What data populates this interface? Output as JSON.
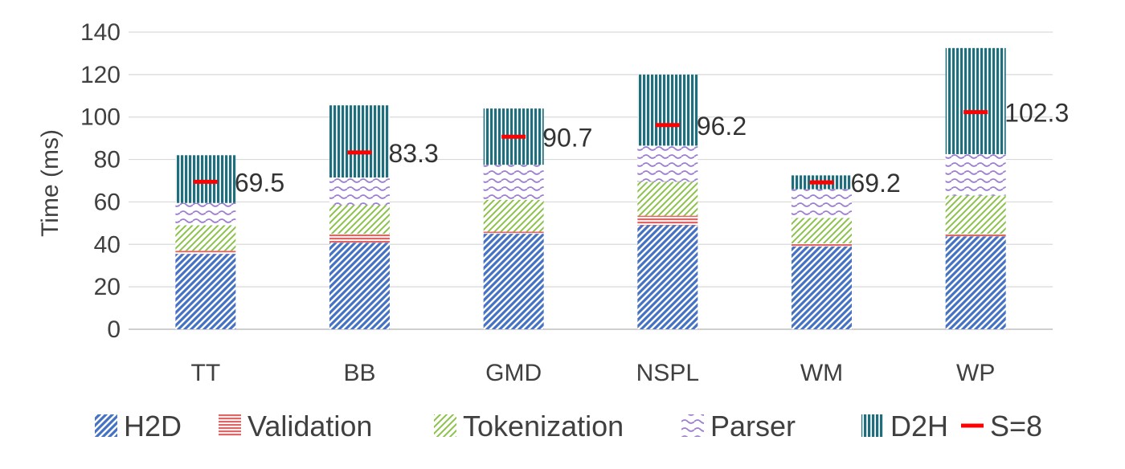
{
  "chart_data": {
    "type": "bar",
    "stacked": true,
    "categories": [
      "TT",
      "BB",
      "GMD",
      "NSPL",
      "WM",
      "WP"
    ],
    "ylabel": "Time (ms)",
    "xlabel": "",
    "ylim": [
      0,
      140
    ],
    "yticks": [
      0,
      20,
      40,
      60,
      80,
      100,
      120,
      140
    ],
    "grid": true,
    "legend": "bottom",
    "series": [
      {
        "name": "H2D",
        "color": "#4472c4",
        "values": [
          35.5,
          40.8,
          45.0,
          49.0,
          39.0,
          43.8
        ]
      },
      {
        "name": "Validation",
        "color": "#e06666",
        "values": [
          1.5,
          4.2,
          1.0,
          4.5,
          1.5,
          1.2
        ]
      },
      {
        "name": "Tokenization",
        "color": "#8bc34a",
        "values": [
          12.0,
          13.5,
          15.0,
          16.0,
          12.0,
          18.0
        ]
      },
      {
        "name": "Parser",
        "color": "#9c7fd1",
        "values": [
          10.5,
          13.0,
          16.5,
          17.0,
          13.5,
          19.5
        ]
      },
      {
        "name": "D2H",
        "color": "#1e6e7e",
        "values": [
          22.5,
          34.0,
          26.5,
          33.5,
          6.5,
          50.0
        ]
      }
    ],
    "marker_series": {
      "name": "S=8",
      "color": "#ff0000",
      "values": [
        69.5,
        83.3,
        90.7,
        96.2,
        69.2,
        102.3
      ],
      "labels": [
        "69.5",
        "83.3",
        "90.7",
        "96.2",
        "69.2",
        "102.3"
      ]
    }
  }
}
